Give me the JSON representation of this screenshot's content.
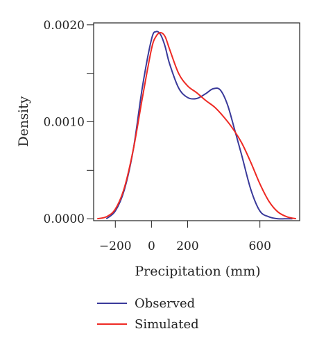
{
  "chart_data": {
    "type": "line",
    "title": "",
    "xlabel": "Precipitation (mm)",
    "ylabel": "Density",
    "xlim": [
      -320,
      820
    ],
    "ylim": [
      -2e-05,
      0.00202
    ],
    "x_ticks": [
      -200,
      0,
      200,
      600
    ],
    "x_tick_labels": [
      "−200",
      "0",
      "200",
      "600"
    ],
    "y_ticks": [
      0.0,
      0.0005,
      0.001,
      0.0015,
      0.002
    ],
    "y_tick_labels": [
      "0.0000",
      "",
      "0.0010",
      "",
      "0.0020"
    ],
    "grid": false,
    "legend_position": "bottom-left",
    "series": [
      {
        "name": "Observed",
        "color": "#3a3a9a",
        "x": [
          -250,
          -200,
          -150,
          -100,
          -50,
          0,
          25,
          50,
          75,
          100,
          150,
          200,
          250,
          300,
          340,
          380,
          420,
          460,
          500,
          550,
          600,
          650,
          700,
          750,
          780
        ],
        "y": [
          0.0,
          8e-05,
          0.0003,
          0.00072,
          0.00136,
          0.00185,
          0.00193,
          0.0019,
          0.00178,
          0.0016,
          0.00135,
          0.00125,
          0.00124,
          0.00129,
          0.00134,
          0.00133,
          0.00118,
          0.00092,
          0.00065,
          0.0003,
          8e-05,
          2e-05,
          0.0,
          0.0,
          0.0
        ]
      },
      {
        "name": "Simulated",
        "color": "#ee2a24",
        "x": [
          -300,
          -250,
          -200,
          -150,
          -100,
          -50,
          0,
          25,
          50,
          75,
          100,
          150,
          200,
          250,
          300,
          350,
          400,
          450,
          500,
          550,
          600,
          650,
          700,
          750,
          800
        ],
        "y": [
          0.0,
          2e-05,
          0.0001,
          0.00032,
          0.00072,
          0.00125,
          0.00175,
          0.00188,
          0.00192,
          0.00188,
          0.00175,
          0.0015,
          0.00137,
          0.0013,
          0.00122,
          0.00115,
          0.00105,
          0.00093,
          0.00078,
          0.00058,
          0.00036,
          0.00018,
          7e-05,
          2e-05,
          0.0
        ]
      }
    ]
  }
}
